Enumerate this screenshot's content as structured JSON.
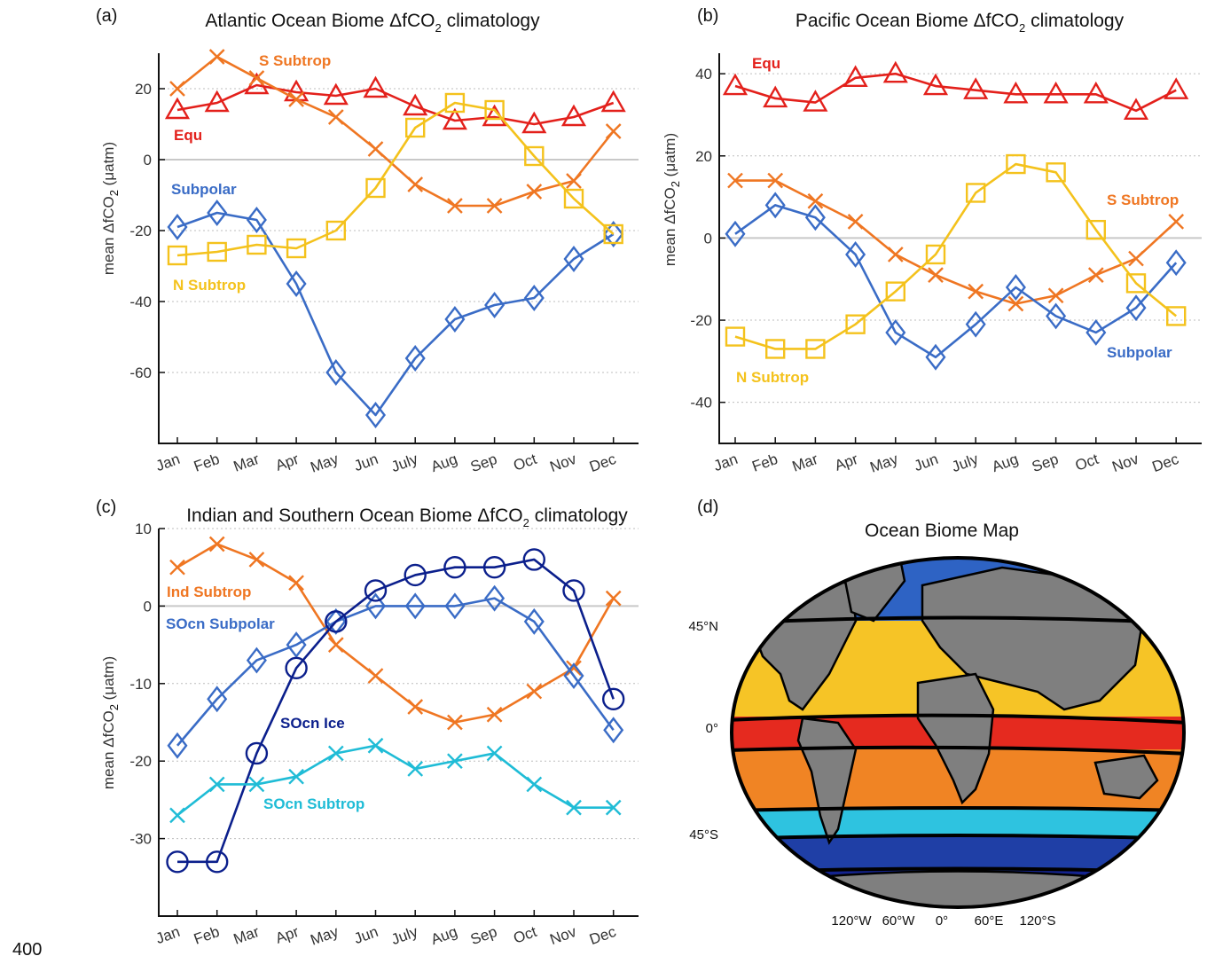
{
  "months": [
    "Jan",
    "Feb",
    "Mar",
    "Apr",
    "May",
    "Jun",
    "July",
    "Aug",
    "Sep",
    "Oct",
    "Nov",
    "Dec"
  ],
  "page_number": "400",
  "colors": {
    "red": "#e3201b",
    "orange": "#ef7622",
    "blue": "#3a6cc6",
    "yellow": "#f4c21c",
    "navy": "#0b1f8c",
    "cyan": "#1fbcd6"
  },
  "chart_data": [
    {
      "type": "line",
      "panel": "(a)",
      "title_pre": "Atlantic Ocean Biome ΔfCO",
      "title_sub": "2",
      "title_post": " climatology",
      "ylabel_pre": "mean ΔfCO",
      "ylabel_sub": "2",
      "ylabel_post": " (μatm)",
      "ylim": [
        -80,
        30
      ],
      "yticks": [
        20,
        0,
        -20,
        -40,
        -60
      ],
      "grid": "dotted horizontal",
      "series": [
        {
          "name": "Equ",
          "color": "#e3201b",
          "marker": "triangle",
          "values": [
            14,
            16,
            21,
            19,
            18,
            20,
            15,
            11,
            12,
            10,
            12,
            16
          ]
        },
        {
          "name": "S Subtrop",
          "color": "#ef7622",
          "marker": "x",
          "values": [
            20,
            29,
            23,
            17,
            12,
            3,
            -7,
            -13,
            -13,
            -9,
            -6,
            8
          ]
        },
        {
          "name": "Subpolar",
          "color": "#3a6cc6",
          "marker": "diamond",
          "values": [
            -19,
            -15,
            -17,
            -35,
            -60,
            -72,
            -56,
            -45,
            -41,
            -39,
            -28,
            -21
          ]
        },
        {
          "name": "N Subtrop",
          "color": "#f4c21c",
          "marker": "square",
          "values": [
            -27,
            -26,
            -24,
            -25,
            -20,
            -8,
            9,
            16,
            14,
            1,
            -11,
            -21
          ]
        }
      ]
    },
    {
      "type": "line",
      "panel": "(b)",
      "title_pre": "Pacific Ocean Biome ΔfCO",
      "title_sub": "2",
      "title_post": " climatology",
      "ylabel_pre": "mean ΔfCO",
      "ylabel_sub": "2",
      "ylabel_post": " (μatm)",
      "ylim": [
        -50,
        45
      ],
      "yticks": [
        40,
        20,
        0,
        -20,
        -40
      ],
      "grid": "dotted horizontal",
      "series": [
        {
          "name": "Equ",
          "color": "#e3201b",
          "marker": "triangle",
          "values": [
            37,
            34,
            33,
            39,
            40,
            37,
            36,
            35,
            35,
            35,
            31,
            36
          ]
        },
        {
          "name": "S Subtrop",
          "color": "#ef7622",
          "marker": "x",
          "values": [
            14,
            14,
            9,
            4,
            -4,
            -9,
            -13,
            -16,
            -14,
            -9,
            -5,
            4
          ]
        },
        {
          "name": "Subpolar",
          "color": "#3a6cc6",
          "marker": "diamond",
          "values": [
            1,
            8,
            5,
            -4,
            -23,
            -29,
            -21,
            -12,
            -19,
            -23,
            -17,
            -6
          ]
        },
        {
          "name": "N Subtrop",
          "color": "#f4c21c",
          "marker": "square",
          "values": [
            -24,
            -27,
            -27,
            -21,
            -13,
            -4,
            11,
            18,
            16,
            2,
            -11,
            -19
          ]
        }
      ]
    },
    {
      "type": "line",
      "panel": "(c)",
      "title_pre": "Indian and Southern Ocean Biome ΔfCO",
      "title_sub": "2",
      "title_post": " climatology",
      "ylabel_pre": "mean ΔfCO",
      "ylabel_sub": "2",
      "ylabel_post": " (μatm)",
      "ylim": [
        -40,
        10
      ],
      "yticks": [
        10,
        0,
        -10,
        -20,
        -30
      ],
      "grid": "dotted horizontal",
      "series": [
        {
          "name": "Ind Subtrop",
          "color": "#ef7622",
          "marker": "x",
          "values": [
            5,
            8,
            6,
            3,
            -5,
            -9,
            -13,
            -15,
            -14,
            -11,
            -8,
            1
          ]
        },
        {
          "name": "SOcn Subpolar",
          "color": "#3a6cc6",
          "marker": "diamond",
          "values": [
            -18,
            -12,
            -7,
            -5,
            -2,
            0,
            0,
            0,
            1,
            -2,
            -9,
            -16
          ]
        },
        {
          "name": "SOcn Ice",
          "color": "#0b1f8c",
          "marker": "circle",
          "values": [
            -33,
            -33,
            -19,
            -8,
            -2,
            2,
            4,
            5,
            5,
            6,
            2,
            -12
          ]
        },
        {
          "name": "SOcn Subtrop",
          "color": "#1fbcd6",
          "marker": "x",
          "values": [
            -27,
            -23,
            -23,
            -22,
            -19,
            -18,
            -21,
            -20,
            -19,
            -23,
            -26,
            -26
          ]
        }
      ]
    }
  ],
  "map": {
    "panel": "(d)",
    "title": "Ocean Biome Map",
    "lat_labels": [
      "45°N",
      "0°",
      "45°S"
    ],
    "lon_labels": [
      "120°W",
      "60°W",
      "0°",
      "60°E",
      "120°S"
    ],
    "biome_colors": {
      "subpolar": "#2e63c4",
      "n_subtrop": "#f6c426",
      "equ": "#e52a1f",
      "s_subtrop": "#f08424",
      "socn_subtrop": "#2ec3e0",
      "socn_subpolar": "#1f3fa6",
      "ice": "#14238f",
      "land": "#7f7f7f"
    }
  }
}
